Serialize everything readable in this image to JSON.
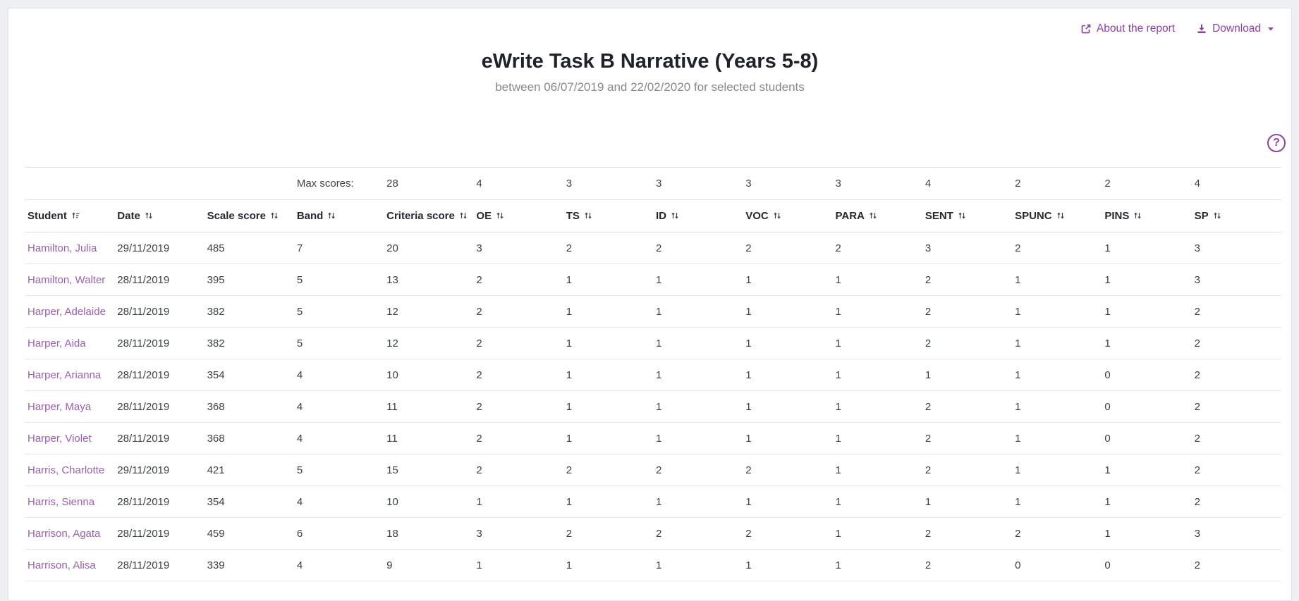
{
  "accent_color": "#8b42a5",
  "link_color": "#9d5fae",
  "header": {
    "title": "eWrite Task B Narrative (Years 5-8)",
    "subtitle": "between 06/07/2019 and 22/02/2020 for selected students",
    "about_label": "About the report",
    "download_label": "Download",
    "help_glyph": "?"
  },
  "icons": {
    "about": "external-link-icon",
    "download": "download-icon",
    "download_caret": "caret-down-icon",
    "help": "question-circle-icon",
    "sort_inactive": "sort-up-down-icon",
    "sort_active": "sort-ascending-icon"
  },
  "table": {
    "max_scores_label": "Max scores:",
    "columns": [
      {
        "label": "Student",
        "sort": "asc"
      },
      {
        "label": "Date",
        "sort": "none"
      },
      {
        "label": "Scale score",
        "sort": "none"
      },
      {
        "label": "Band",
        "sort": "none"
      },
      {
        "label": "Criteria score",
        "sort": "none"
      },
      {
        "label": "OE",
        "sort": "none"
      },
      {
        "label": "TS",
        "sort": "none"
      },
      {
        "label": "ID",
        "sort": "none"
      },
      {
        "label": "VOC",
        "sort": "none"
      },
      {
        "label": "PARA",
        "sort": "none"
      },
      {
        "label": "SENT",
        "sort": "none"
      },
      {
        "label": "SPUNC",
        "sort": "none"
      },
      {
        "label": "PINS",
        "sort": "none"
      },
      {
        "label": "SP",
        "sort": "none"
      }
    ],
    "max_scores": [
      "",
      "",
      "",
      "Max scores:",
      "28",
      "4",
      "3",
      "3",
      "3",
      "3",
      "4",
      "2",
      "2",
      "4"
    ],
    "rows": [
      [
        "Hamilton, Julia",
        "29/11/2019",
        "485",
        "7",
        "20",
        "3",
        "2",
        "2",
        "2",
        "2",
        "3",
        "2",
        "1",
        "3"
      ],
      [
        "Hamilton, Walter",
        "28/11/2019",
        "395",
        "5",
        "13",
        "2",
        "1",
        "1",
        "1",
        "1",
        "2",
        "1",
        "1",
        "3"
      ],
      [
        "Harper, Adelaide",
        "28/11/2019",
        "382",
        "5",
        "12",
        "2",
        "1",
        "1",
        "1",
        "1",
        "2",
        "1",
        "1",
        "2"
      ],
      [
        "Harper, Aida",
        "28/11/2019",
        "382",
        "5",
        "12",
        "2",
        "1",
        "1",
        "1",
        "1",
        "2",
        "1",
        "1",
        "2"
      ],
      [
        "Harper, Arianna",
        "28/11/2019",
        "354",
        "4",
        "10",
        "2",
        "1",
        "1",
        "1",
        "1",
        "1",
        "1",
        "0",
        "2"
      ],
      [
        "Harper, Maya",
        "28/11/2019",
        "368",
        "4",
        "11",
        "2",
        "1",
        "1",
        "1",
        "1",
        "2",
        "1",
        "0",
        "2"
      ],
      [
        "Harper, Violet",
        "28/11/2019",
        "368",
        "4",
        "11",
        "2",
        "1",
        "1",
        "1",
        "1",
        "2",
        "1",
        "0",
        "2"
      ],
      [
        "Harris, Charlotte",
        "29/11/2019",
        "421",
        "5",
        "15",
        "2",
        "2",
        "2",
        "2",
        "1",
        "2",
        "1",
        "1",
        "2"
      ],
      [
        "Harris, Sienna",
        "28/11/2019",
        "354",
        "4",
        "10",
        "1",
        "1",
        "1",
        "1",
        "1",
        "1",
        "1",
        "1",
        "2"
      ],
      [
        "Harrison, Agata",
        "28/11/2019",
        "459",
        "6",
        "18",
        "3",
        "2",
        "2",
        "2",
        "1",
        "2",
        "2",
        "1",
        "3"
      ],
      [
        "Harrison, Alisa",
        "28/11/2019",
        "339",
        "4",
        "9",
        "1",
        "1",
        "1",
        "1",
        "1",
        "2",
        "0",
        "0",
        "2"
      ]
    ]
  }
}
